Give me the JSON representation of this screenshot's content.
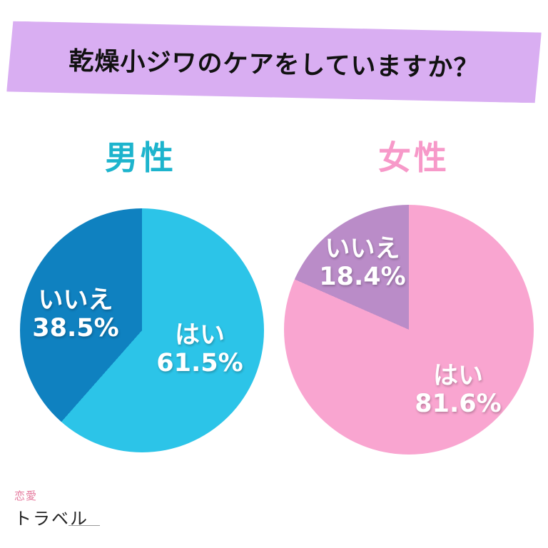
{
  "banner": {
    "title": "乾燥小ジワのケアをしていますか？",
    "color": "#d9aef2"
  },
  "chart_data": [
    {
      "type": "pie",
      "title": "男性",
      "title_color": "#1db4cd",
      "labels": [
        "はい",
        "いいえ"
      ],
      "values": [
        61.5,
        38.5
      ],
      "pct_labels": [
        "61.5%",
        "38.5%"
      ],
      "colors": [
        "#2cc4e8",
        "#0f81c0"
      ],
      "start_angle_deg": 0,
      "legend_position": "none"
    },
    {
      "type": "pie",
      "title": "女性",
      "title_color": "#f799c9",
      "labels": [
        "はい",
        "いいえ"
      ],
      "values": [
        81.6,
        18.4
      ],
      "pct_labels": [
        "81.6%",
        "18.4%"
      ],
      "colors": [
        "#f9a5d0",
        "#ba8cc8"
      ],
      "start_angle_deg": 0,
      "legend_position": "none"
    }
  ],
  "logo": {
    "line1": "恋愛",
    "line2": "トラベル"
  }
}
